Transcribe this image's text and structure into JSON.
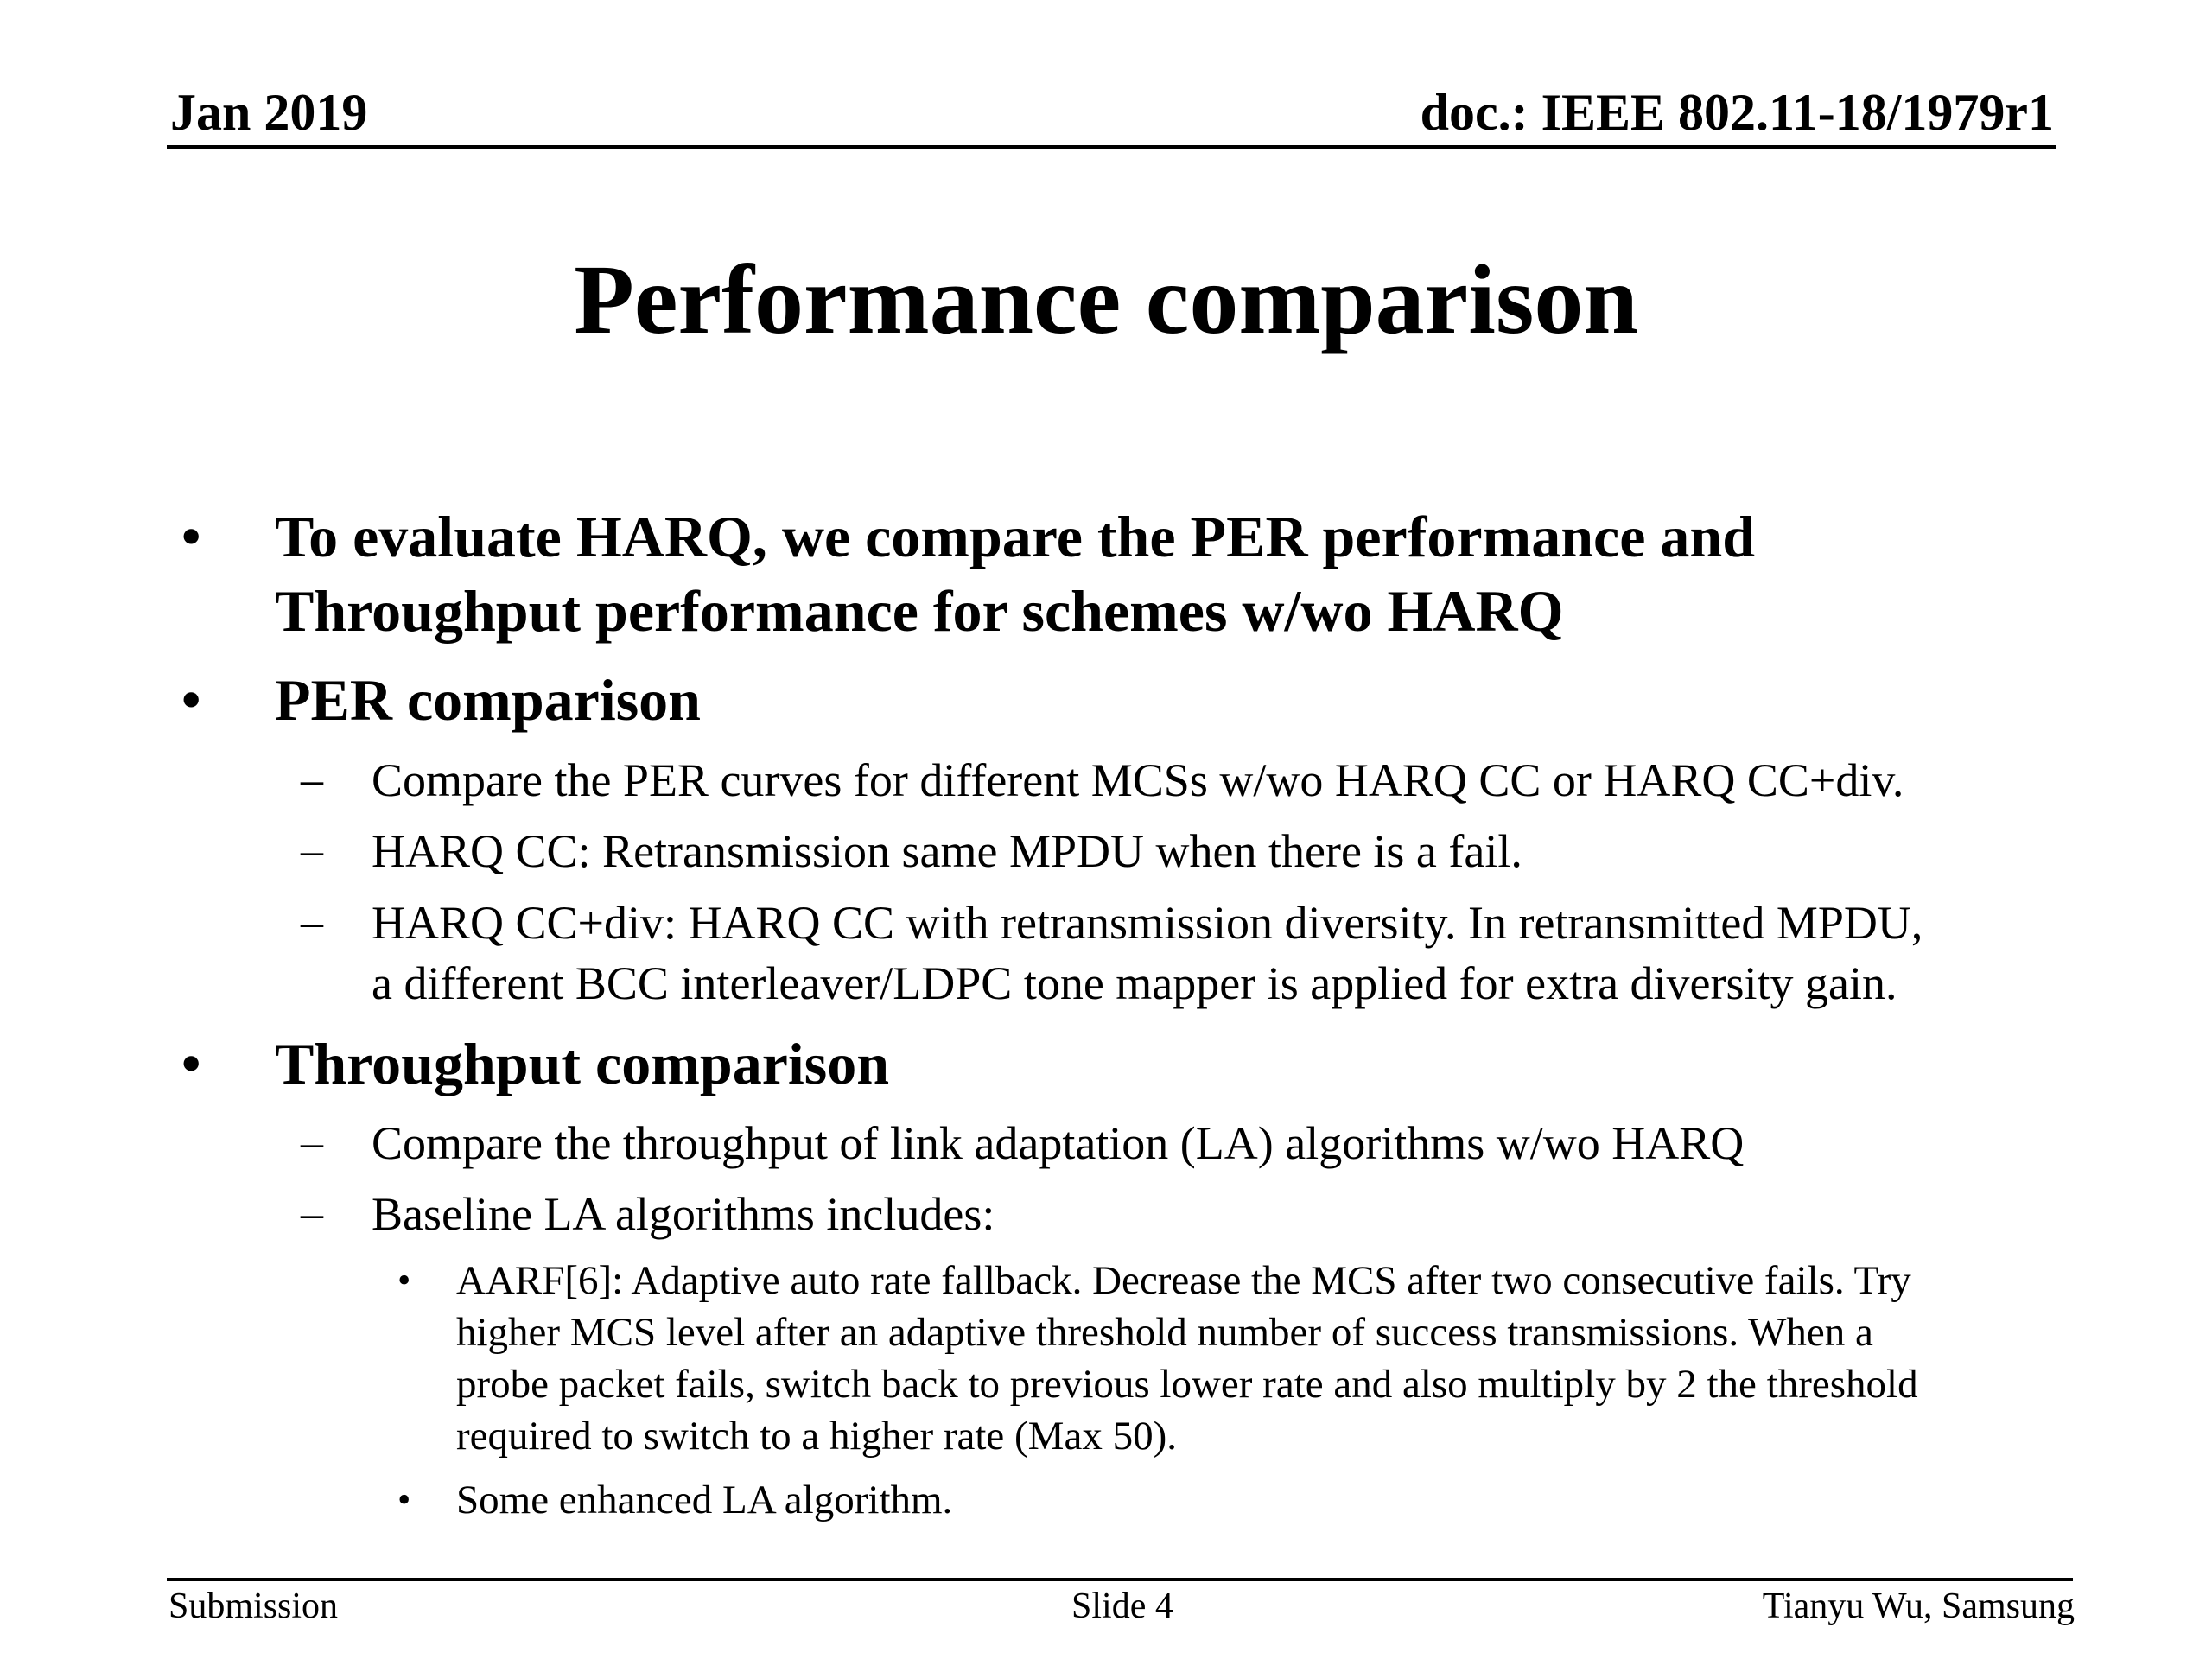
{
  "header": {
    "date": "Jan 2019",
    "doc_id": "doc.: IEEE 802.11-18/1979r1"
  },
  "slide": {
    "title": "Performance comparison",
    "bullet_marker": "•",
    "dash_marker": "–",
    "items": [
      {
        "lines": [
          "To evaluate HARQ, we compare the PER performance and",
          "Throughput performance for schemes w/wo HARQ"
        ]
      },
      {
        "lines": [
          "PER comparison"
        ],
        "subitems": [
          {
            "lines": [
              "Compare the PER curves for different MCSs w/wo HARQ CC or HARQ CC+div."
            ]
          },
          {
            "lines": [
              "HARQ CC: Retransmission same MPDU when there is a fail."
            ]
          },
          {
            "lines": [
              "HARQ CC+div: HARQ CC with retransmission diversity. In retransmitted MPDU,",
              "a different BCC interleaver/LDPC tone mapper is applied for extra diversity gain."
            ]
          }
        ]
      },
      {
        "lines": [
          "Throughput comparison"
        ],
        "subitems": [
          {
            "lines": [
              "Compare the throughput of link adaptation (LA) algorithms w/wo HARQ"
            ]
          },
          {
            "lines": [
              "Baseline LA algorithms includes:"
            ],
            "subitems": [
              {
                "lines": [
                  "AARF[6]: Adaptive auto rate fallback. Decrease the MCS after two consecutive fails. Try",
                  "higher MCS level after an adaptive threshold number of success transmissions. When a",
                  "probe packet fails, switch back to previous lower rate and also multiply by 2 the threshold",
                  "required to switch to a higher rate (Max 50)."
                ]
              },
              {
                "lines": [
                  "Some enhanced LA algorithm."
                ]
              }
            ]
          }
        ]
      }
    ]
  },
  "footer": {
    "left": "Submission",
    "center": "Slide 4",
    "right": "Tianyu Wu, Samsung"
  }
}
